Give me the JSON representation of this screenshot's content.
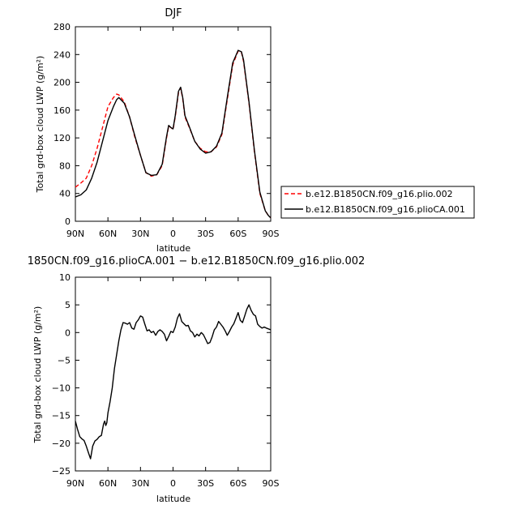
{
  "figure_title": "DJF",
  "chart_data": [
    {
      "type": "line",
      "title": "DJF",
      "xlabel": "latitude",
      "ylabel": "Total grd-box cloud LWP (g/m²)",
      "xlim": [
        -90,
        90
      ],
      "ylim": [
        0,
        280
      ],
      "x_reversed": true,
      "x_ticks": [
        {
          "value": -90,
          "label": "90N"
        },
        {
          "value": -60,
          "label": "60N"
        },
        {
          "value": -30,
          "label": "30N"
        },
        {
          "value": 0,
          "label": "0"
        },
        {
          "value": 30,
          "label": "30S"
        },
        {
          "value": 60,
          "label": "60S"
        },
        {
          "value": 90,
          "label": "90S"
        }
      ],
      "y_ticks": [
        0,
        40,
        80,
        120,
        160,
        200,
        240,
        280
      ],
      "grid": false,
      "legend_position": "right",
      "series": [
        {
          "name": "b.e12.B1850CN.f09_g16.plio.002",
          "color": "#ff0000",
          "dash": "dashed",
          "points": [
            [
              -90,
              49
            ],
            [
              -85,
              55
            ],
            [
              -80,
              62
            ],
            [
              -75,
              80
            ],
            [
              -70,
              105
            ],
            [
              -65,
              135
            ],
            [
              -60,
              165
            ],
            [
              -55,
              178
            ],
            [
              -52,
              183
            ],
            [
              -50,
              182
            ],
            [
              -45,
              172
            ],
            [
              -40,
              150
            ],
            [
              -35,
              120
            ],
            [
              -30,
              95
            ],
            [
              -25,
              70
            ],
            [
              -20,
              65
            ],
            [
              -15,
              67
            ],
            [
              -10,
              80
            ],
            [
              -6,
              120
            ],
            [
              -4,
              137
            ],
            [
              -2,
              135
            ],
            [
              0,
              132
            ],
            [
              2,
              150
            ],
            [
              5,
              185
            ],
            [
              7,
              192
            ],
            [
              9,
              175
            ],
            [
              11,
              150
            ],
            [
              15,
              135
            ],
            [
              20,
              115
            ],
            [
              25,
              105
            ],
            [
              30,
              100
            ],
            [
              35,
              100
            ],
            [
              40,
              107
            ],
            [
              45,
              125
            ],
            [
              50,
              175
            ],
            [
              55,
              225
            ],
            [
              60,
              245
            ],
            [
              63,
              243
            ],
            [
              65,
              230
            ],
            [
              70,
              170
            ],
            [
              75,
              100
            ],
            [
              80,
              40
            ],
            [
              85,
              15
            ],
            [
              88,
              8
            ],
            [
              90,
              5
            ]
          ]
        },
        {
          "name": "b.e12.B1850CN.f09_g16.plioCA.001",
          "color": "#000000",
          "dash": "solid",
          "points": [
            [
              -90,
              35
            ],
            [
              -85,
              38
            ],
            [
              -80,
              45
            ],
            [
              -75,
              62
            ],
            [
              -70,
              85
            ],
            [
              -65,
              115
            ],
            [
              -60,
              145
            ],
            [
              -55,
              165
            ],
            [
              -52,
              175
            ],
            [
              -50,
              178
            ],
            [
              -45,
              170
            ],
            [
              -40,
              150
            ],
            [
              -35,
              122
            ],
            [
              -30,
              95
            ],
            [
              -25,
              70
            ],
            [
              -20,
              66
            ],
            [
              -15,
              67
            ],
            [
              -10,
              82
            ],
            [
              -6,
              122
            ],
            [
              -4,
              138
            ],
            [
              -2,
              135
            ],
            [
              0,
              133
            ],
            [
              2,
              152
            ],
            [
              5,
              187
            ],
            [
              7,
              193
            ],
            [
              9,
              177
            ],
            [
              11,
              152
            ],
            [
              15,
              136
            ],
            [
              20,
              115
            ],
            [
              25,
              104
            ],
            [
              30,
              98
            ],
            [
              35,
              100
            ],
            [
              40,
              108
            ],
            [
              45,
              127
            ],
            [
              50,
              178
            ],
            [
              55,
              228
            ],
            [
              60,
              246
            ],
            [
              63,
              244
            ],
            [
              65,
              232
            ],
            [
              70,
              172
            ],
            [
              75,
              102
            ],
            [
              80,
              42
            ],
            [
              85,
              15
            ],
            [
              88,
              8
            ],
            [
              90,
              5
            ]
          ]
        }
      ]
    },
    {
      "type": "line",
      "title": "1850CN.f09_g16.plioCA.001 − b.e12.B1850CN.f09_g16.plio.002",
      "xlabel": "latitude",
      "ylabel": "Total grd-box cloud LWP (g/m²)",
      "xlim": [
        -90,
        90
      ],
      "ylim": [
        -25,
        10
      ],
      "x_reversed": true,
      "x_ticks": [
        {
          "value": -90,
          "label": "90N"
        },
        {
          "value": -60,
          "label": "60N"
        },
        {
          "value": -30,
          "label": "30N"
        },
        {
          "value": 0,
          "label": "0"
        },
        {
          "value": 30,
          "label": "30S"
        },
        {
          "value": 60,
          "label": "60S"
        },
        {
          "value": 90,
          "label": "90S"
        }
      ],
      "y_ticks": [
        -25,
        -20,
        -15,
        -10,
        -5,
        0,
        5,
        10
      ],
      "grid": false,
      "series": [
        {
          "color": "#000000",
          "dash": "solid",
          "points": [
            [
              -90,
              -16
            ],
            [
              -88,
              -17.5
            ],
            [
              -86,
              -18.8
            ],
            [
              -84,
              -19.2
            ],
            [
              -82,
              -19.5
            ],
            [
              -80,
              -20.5
            ],
            [
              -78,
              -21.7
            ],
            [
              -76,
              -22.8
            ],
            [
              -74,
              -20.5
            ],
            [
              -72,
              -19.6
            ],
            [
              -70,
              -19.3
            ],
            [
              -68,
              -18.8
            ],
            [
              -66,
              -18.6
            ],
            [
              -65,
              -17.5
            ],
            [
              -64,
              -16.5
            ],
            [
              -63,
              -16.0
            ],
            [
              -62,
              -16.8
            ],
            [
              -61,
              -16.3
            ],
            [
              -60,
              -14.5
            ],
            [
              -58,
              -12.5
            ],
            [
              -56,
              -10
            ],
            [
              -54,
              -6.5
            ],
            [
              -52,
              -4
            ],
            [
              -50,
              -1.5
            ],
            [
              -48,
              0.5
            ],
            [
              -46,
              1.8
            ],
            [
              -44,
              1.7
            ],
            [
              -42,
              1.5
            ],
            [
              -40,
              1.8
            ],
            [
              -38,
              0.8
            ],
            [
              -36,
              0.6
            ],
            [
              -34,
              1.8
            ],
            [
              -32,
              2.3
            ],
            [
              -30,
              3.0
            ],
            [
              -28,
              2.8
            ],
            [
              -26,
              1.5
            ],
            [
              -24,
              0.3
            ],
            [
              -22,
              0.5
            ],
            [
              -20,
              0
            ],
            [
              -18,
              0.2
            ],
            [
              -16,
              -0.5
            ],
            [
              -14,
              0.2
            ],
            [
              -12,
              0.5
            ],
            [
              -10,
              0.2
            ],
            [
              -8,
              -0.3
            ],
            [
              -6,
              -1.5
            ],
            [
              -4,
              -0.7
            ],
            [
              -2,
              0.2
            ],
            [
              0,
              0
            ],
            [
              2,
              1.0
            ],
            [
              4,
              2.6
            ],
            [
              6,
              3.4
            ],
            [
              8,
              2.0
            ],
            [
              10,
              1.6
            ],
            [
              12,
              1.2
            ],
            [
              14,
              1.3
            ],
            [
              16,
              0.3
            ],
            [
              18,
              0
            ],
            [
              20,
              -0.8
            ],
            [
              22,
              -0.3
            ],
            [
              24,
              -0.6
            ],
            [
              26,
              0
            ],
            [
              28,
              -0.4
            ],
            [
              30,
              -1.2
            ],
            [
              32,
              -2.0
            ],
            [
              34,
              -1.8
            ],
            [
              36,
              -0.8
            ],
            [
              38,
              0.5
            ],
            [
              40,
              1.0
            ],
            [
              42,
              2.0
            ],
            [
              44,
              1.5
            ],
            [
              46,
              1.0
            ],
            [
              48,
              0.3
            ],
            [
              50,
              -0.5
            ],
            [
              52,
              0.2
            ],
            [
              54,
              1.0
            ],
            [
              56,
              1.6
            ],
            [
              58,
              2.6
            ],
            [
              60,
              3.6
            ],
            [
              62,
              2.2
            ],
            [
              64,
              1.8
            ],
            [
              66,
              3.0
            ],
            [
              68,
              4.2
            ],
            [
              70,
              5.0
            ],
            [
              72,
              4.0
            ],
            [
              74,
              3.3
            ],
            [
              76,
              3.0
            ],
            [
              78,
              1.5
            ],
            [
              80,
              1.1
            ],
            [
              82,
              0.8
            ],
            [
              84,
              1.0
            ],
            [
              86,
              0.8
            ],
            [
              90,
              0.5
            ]
          ]
        }
      ]
    }
  ]
}
